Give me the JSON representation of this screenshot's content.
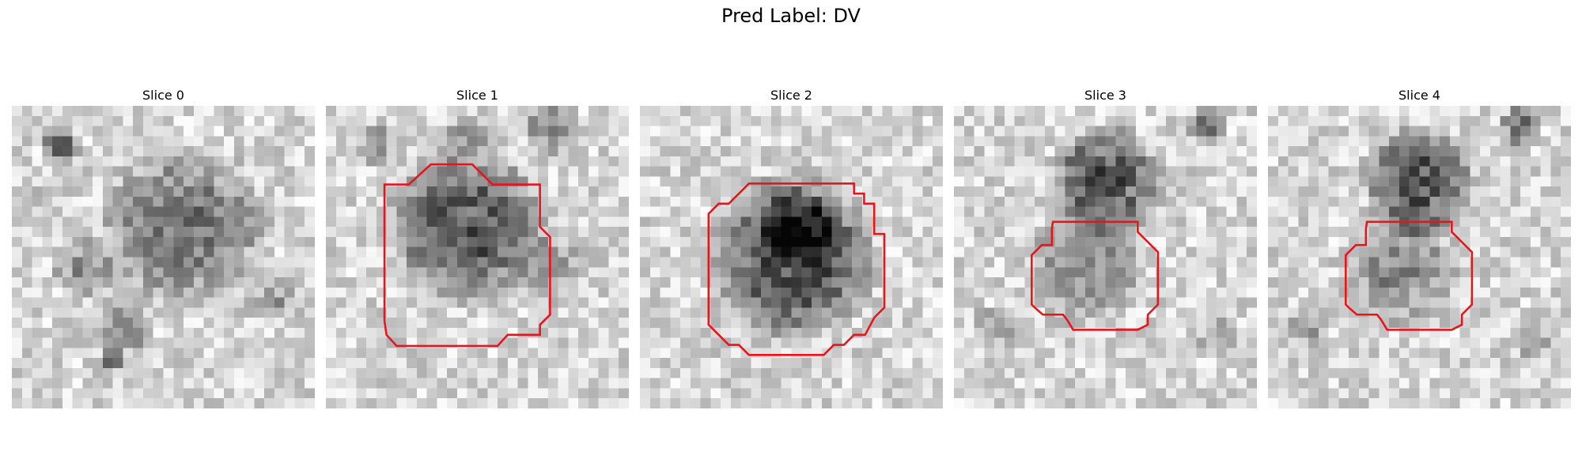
{
  "figure": {
    "title": "Pred Label: DV",
    "grid_size": 30,
    "outline_color": "#e8141c"
  },
  "panels": [
    {
      "title": "Slice 0",
      "blobs": [
        {
          "cx": 17,
          "cy": 12,
          "r": 9,
          "d": 0.38
        },
        {
          "cx": 7,
          "cy": 16,
          "r": 3.5,
          "d": 0.25
        },
        {
          "cx": 5,
          "cy": 4,
          "r": 2.2,
          "d": 0.45
        },
        {
          "cx": 11,
          "cy": 22,
          "r": 3,
          "d": 0.3
        },
        {
          "cx": 10,
          "cy": 25,
          "r": 1.6,
          "d": 0.45
        },
        {
          "cx": 26,
          "cy": 19,
          "r": 3,
          "d": 0.2
        },
        {
          "cx": 3,
          "cy": 9,
          "r": 2,
          "d": 0.15
        }
      ],
      "contour": null
    },
    {
      "title": "Slice 1",
      "blobs": [
        {
          "cx": 14,
          "cy": 12,
          "r": 8.5,
          "d": 0.5
        },
        {
          "cx": 22,
          "cy": 2,
          "r": 3,
          "d": 0.35
        },
        {
          "cx": 14,
          "cy": 3,
          "r": 2.5,
          "d": 0.25
        },
        {
          "cx": 5,
          "cy": 4,
          "r": 2.5,
          "d": 0.25
        },
        {
          "cx": 22,
          "cy": 16,
          "r": 4,
          "d": 0.2
        }
      ],
      "contour": [
        [
          10.4,
          5.8
        ],
        [
          14.5,
          5.8
        ],
        [
          16.5,
          7.8
        ],
        [
          21.2,
          7.8
        ],
        [
          21.2,
          12
        ],
        [
          22.2,
          13
        ],
        [
          22.2,
          20.7
        ],
        [
          21.2,
          21.7
        ],
        [
          21.2,
          22.7
        ],
        [
          18,
          22.7
        ],
        [
          17,
          23.8
        ],
        [
          7,
          23.8
        ],
        [
          6,
          22.7
        ],
        [
          5.8,
          21.3
        ],
        [
          5.8,
          7.8
        ],
        [
          8.2,
          7.8
        ]
      ]
    },
    {
      "title": "Slice 2",
      "blobs": [
        {
          "cx": 15,
          "cy": 15,
          "r": 9,
          "d": 0.6
        },
        {
          "cx": 16,
          "cy": 12,
          "r": 4,
          "d": 0.35
        }
      ],
      "contour": [
        [
          10.8,
          7.7
        ],
        [
          21.2,
          7.7
        ],
        [
          21.2,
          8.7
        ],
        [
          22.2,
          8.7
        ],
        [
          22.2,
          9.7
        ],
        [
          23.2,
          9.7
        ],
        [
          23.2,
          12.7
        ],
        [
          24.2,
          12.7
        ],
        [
          24.2,
          20
        ],
        [
          23.2,
          21
        ],
        [
          22.3,
          22.7
        ],
        [
          21.2,
          22.7
        ],
        [
          20.2,
          23.7
        ],
        [
          19.2,
          23.7
        ],
        [
          18.2,
          24.7
        ],
        [
          10.8,
          24.7
        ],
        [
          9.8,
          23.7
        ],
        [
          8.8,
          23.7
        ],
        [
          6.8,
          21.7
        ],
        [
          6.8,
          10.7
        ],
        [
          7.8,
          9.7
        ],
        [
          8.8,
          9.7
        ]
      ]
    },
    {
      "title": "Slice 3",
      "blobs": [
        {
          "cx": 15,
          "cy": 7.5,
          "r": 6,
          "d": 0.55
        },
        {
          "cx": 13,
          "cy": 16,
          "r": 6.3,
          "d": 0.3
        },
        {
          "cx": 25,
          "cy": 2,
          "r": 2.2,
          "d": 0.45
        },
        {
          "cx": 4,
          "cy": 22,
          "r": 2.5,
          "d": 0.2
        },
        {
          "cx": 26,
          "cy": 23,
          "r": 2.5,
          "d": 0.2
        }
      ],
      "contour": [
        [
          9.8,
          11.5
        ],
        [
          18.2,
          11.5
        ],
        [
          18.2,
          12.5
        ],
        [
          19.2,
          13.5
        ],
        [
          20.2,
          14.5
        ],
        [
          20.2,
          19.7
        ],
        [
          19.2,
          20.7
        ],
        [
          19.2,
          21.7
        ],
        [
          18.2,
          22.2
        ],
        [
          11.8,
          22.2
        ],
        [
          11.2,
          21.2
        ],
        [
          10.8,
          20.7
        ],
        [
          8.8,
          20.7
        ],
        [
          8,
          20
        ],
        [
          7.7,
          19.7
        ],
        [
          7.7,
          14.8
        ],
        [
          8.7,
          13.8
        ],
        [
          9.7,
          13.8
        ],
        [
          9.7,
          12.2
        ]
      ]
    },
    {
      "title": "Slice 4",
      "blobs": [
        {
          "cx": 15,
          "cy": 7.5,
          "r": 6,
          "d": 0.55
        },
        {
          "cx": 13,
          "cy": 16,
          "r": 6.3,
          "d": 0.3
        },
        {
          "cx": 25,
          "cy": 2,
          "r": 2.2,
          "d": 0.45
        },
        {
          "cx": 4,
          "cy": 22,
          "r": 2.5,
          "d": 0.2
        },
        {
          "cx": 26,
          "cy": 23,
          "r": 2.5,
          "d": 0.2
        }
      ],
      "contour": [
        [
          9.8,
          11.5
        ],
        [
          18.2,
          11.5
        ],
        [
          18.2,
          12.5
        ],
        [
          19.2,
          13.5
        ],
        [
          20.2,
          14.5
        ],
        [
          20.2,
          19.7
        ],
        [
          19.2,
          20.7
        ],
        [
          19.2,
          21.7
        ],
        [
          18.2,
          22.2
        ],
        [
          11.8,
          22.2
        ],
        [
          11.2,
          21.2
        ],
        [
          10.8,
          20.7
        ],
        [
          8.8,
          20.7
        ],
        [
          8,
          20
        ],
        [
          7.7,
          19.7
        ],
        [
          7.7,
          14.8
        ],
        [
          8.7,
          13.8
        ],
        [
          9.7,
          13.8
        ],
        [
          9.7,
          12.2
        ]
      ]
    }
  ]
}
